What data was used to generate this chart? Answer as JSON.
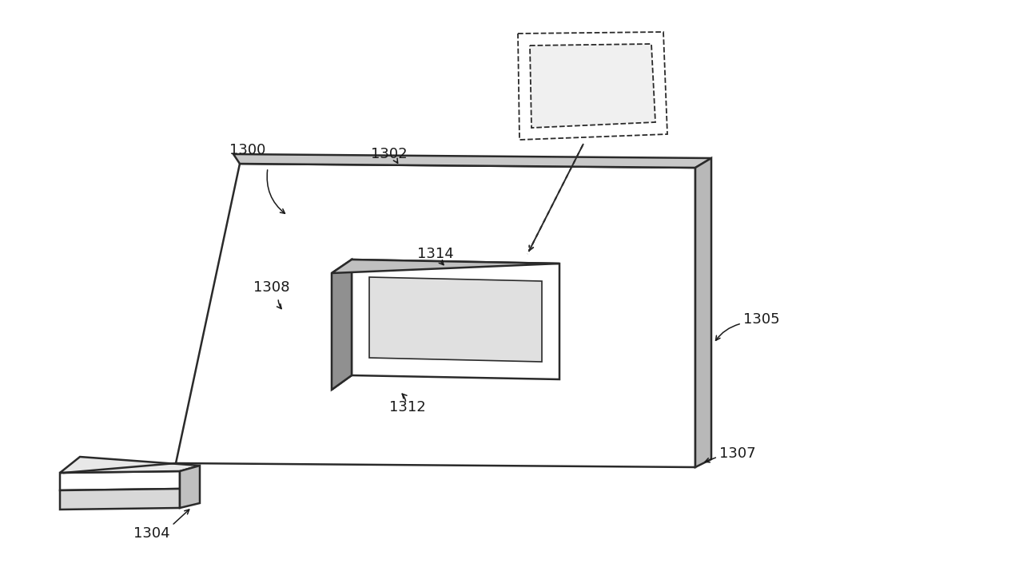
{
  "bg_color": "#ffffff",
  "line_color": "#2a2a2a",
  "label_color": "#1a1a1a",
  "label_fontsize": 13,
  "figsize": [
    12.8,
    7.2
  ],
  "dpi": 100
}
